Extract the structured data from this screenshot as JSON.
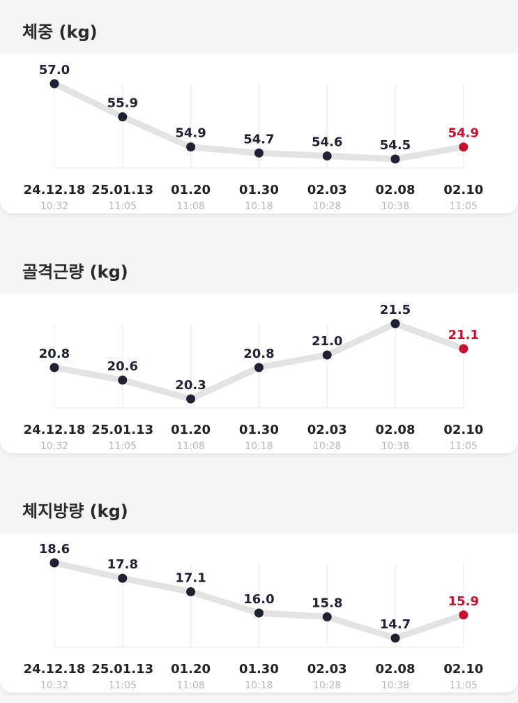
{
  "colors": {
    "point": "#1f2233",
    "latest": "#c8102e",
    "line": "#e3e3e3",
    "grid": "#ececec",
    "date_text": "#222222",
    "time_text": "#b8b8b8"
  },
  "x_axis": {
    "dates": [
      "24.12.18",
      "25.01.13",
      "01.20",
      "01.30",
      "02.03",
      "02.08",
      "02.10"
    ],
    "times": [
      "10:32",
      "11:05",
      "11:08",
      "10:18",
      "10:28",
      "10:38",
      "11:05"
    ]
  },
  "sections": [
    {
      "title": "체중 (kg)"
    },
    {
      "title": "골격근량 (kg)"
    },
    {
      "title": "체지방량 (kg)"
    }
  ],
  "chart_data": [
    {
      "type": "line",
      "title": "체중 (kg)",
      "x": [
        "24.12.18 10:32",
        "25.01.13 11:05",
        "01.20 11:08",
        "01.30 10:18",
        "02.03 10:28",
        "02.08 10:38",
        "02.10 11:05"
      ],
      "values": [
        57.0,
        55.9,
        54.9,
        54.7,
        54.6,
        54.5,
        54.9
      ],
      "value_labels": [
        "57.0",
        "55.9",
        "54.9",
        "54.7",
        "54.6",
        "54.5",
        "54.9"
      ],
      "highlight_last": true
    },
    {
      "type": "line",
      "title": "골격근량 (kg)",
      "x": [
        "24.12.18 10:32",
        "25.01.13 11:05",
        "01.20 11:08",
        "01.30 10:18",
        "02.03 10:28",
        "02.08 10:38",
        "02.10 11:05"
      ],
      "values": [
        20.8,
        20.6,
        20.3,
        20.8,
        21.0,
        21.5,
        21.1
      ],
      "value_labels": [
        "20.8",
        "20.6",
        "20.3",
        "20.8",
        "21.0",
        "21.5",
        "21.1"
      ],
      "highlight_last": true
    },
    {
      "type": "line",
      "title": "체지방량 (kg)",
      "x": [
        "24.12.18 10:32",
        "25.01.13 11:05",
        "01.20 11:08",
        "01.30 10:18",
        "02.03 10:28",
        "02.08 10:38",
        "02.10 11:05"
      ],
      "values": [
        18.6,
        17.8,
        17.1,
        16.0,
        15.8,
        14.7,
        15.9
      ],
      "value_labels": [
        "18.6",
        "17.8",
        "17.1",
        "16.0",
        "15.8",
        "14.7",
        "15.9"
      ],
      "highlight_last": true
    }
  ]
}
